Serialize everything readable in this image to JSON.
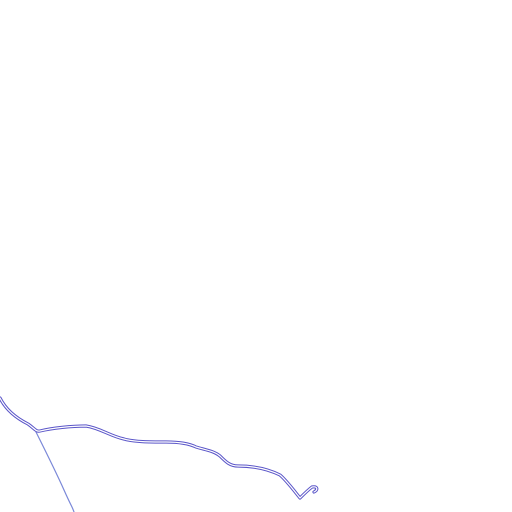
{
  "map": {
    "background_color": "#ffffff",
    "layers": [
      {
        "name": "main-road",
        "kind": "road-casing",
        "stroke_color": "#5a55c8",
        "fill_color": "#ffffff"
      },
      {
        "name": "branch-road",
        "kind": "road-thin",
        "stroke_color": "#7a88d8"
      }
    ]
  }
}
